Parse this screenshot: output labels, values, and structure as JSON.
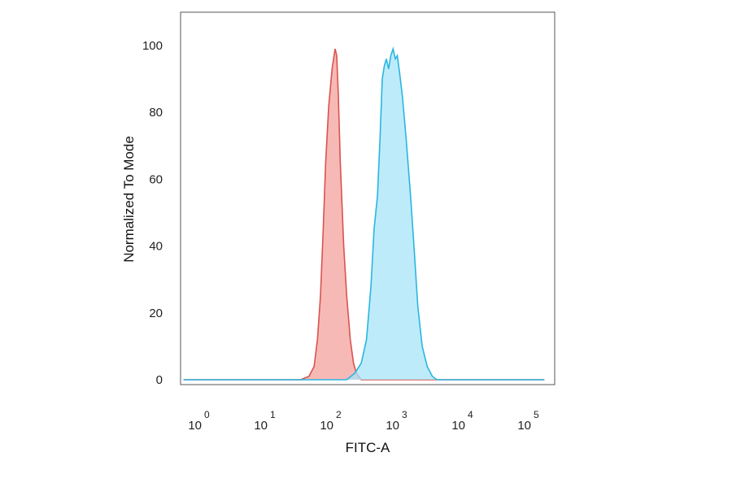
{
  "chart_data": {
    "type": "area",
    "xlabel": "FITC-A",
    "ylabel": "Normalized To Mode",
    "xscale": "log",
    "xlim": [
      0.5,
      150000
    ],
    "ylim": [
      0,
      100
    ],
    "x_ticks": [
      {
        "base": "10",
        "exp": "0",
        "value": 1
      },
      {
        "base": "10",
        "exp": "1",
        "value": 10
      },
      {
        "base": "10",
        "exp": "2",
        "value": 100
      },
      {
        "base": "10",
        "exp": "3",
        "value": 1000
      },
      {
        "base": "10",
        "exp": "4",
        "value": 10000
      },
      {
        "base": "10",
        "exp": "5",
        "value": 100000
      }
    ],
    "y_ticks": [
      "0",
      "20",
      "40",
      "60",
      "80",
      "100"
    ],
    "grid": false,
    "series": [
      {
        "color": "#d9534f",
        "fill": "#f4a29e",
        "points": [
          [
            0.5,
            0
          ],
          [
            30,
            0
          ],
          [
            40,
            1
          ],
          [
            48,
            4
          ],
          [
            54,
            12
          ],
          [
            60,
            25
          ],
          [
            66,
            45
          ],
          [
            72,
            65
          ],
          [
            80,
            82
          ],
          [
            90,
            93
          ],
          [
            100,
            99
          ],
          [
            106,
            97
          ],
          [
            112,
            85
          ],
          [
            120,
            65
          ],
          [
            135,
            40
          ],
          [
            150,
            25
          ],
          [
            170,
            12
          ],
          [
            190,
            5
          ],
          [
            210,
            2
          ],
          [
            250,
            0
          ],
          [
            150000,
            0
          ]
        ]
      },
      {
        "color": "#29b6e0",
        "fill": "#a8e4f8",
        "points": [
          [
            0.5,
            0
          ],
          [
            150,
            0
          ],
          [
            200,
            2
          ],
          [
            250,
            5
          ],
          [
            300,
            12
          ],
          [
            350,
            28
          ],
          [
            390,
            45
          ],
          [
            440,
            55
          ],
          [
            480,
            72
          ],
          [
            520,
            90
          ],
          [
            560,
            94
          ],
          [
            600,
            96
          ],
          [
            650,
            93
          ],
          [
            700,
            97
          ],
          [
            760,
            99
          ],
          [
            820,
            96
          ],
          [
            880,
            97
          ],
          [
            950,
            92
          ],
          [
            1050,
            85
          ],
          [
            1200,
            72
          ],
          [
            1400,
            55
          ],
          [
            1600,
            38
          ],
          [
            1800,
            22
          ],
          [
            2100,
            10
          ],
          [
            2500,
            4
          ],
          [
            3000,
            1
          ],
          [
            3500,
            0
          ],
          [
            150000,
            0
          ]
        ]
      }
    ]
  }
}
